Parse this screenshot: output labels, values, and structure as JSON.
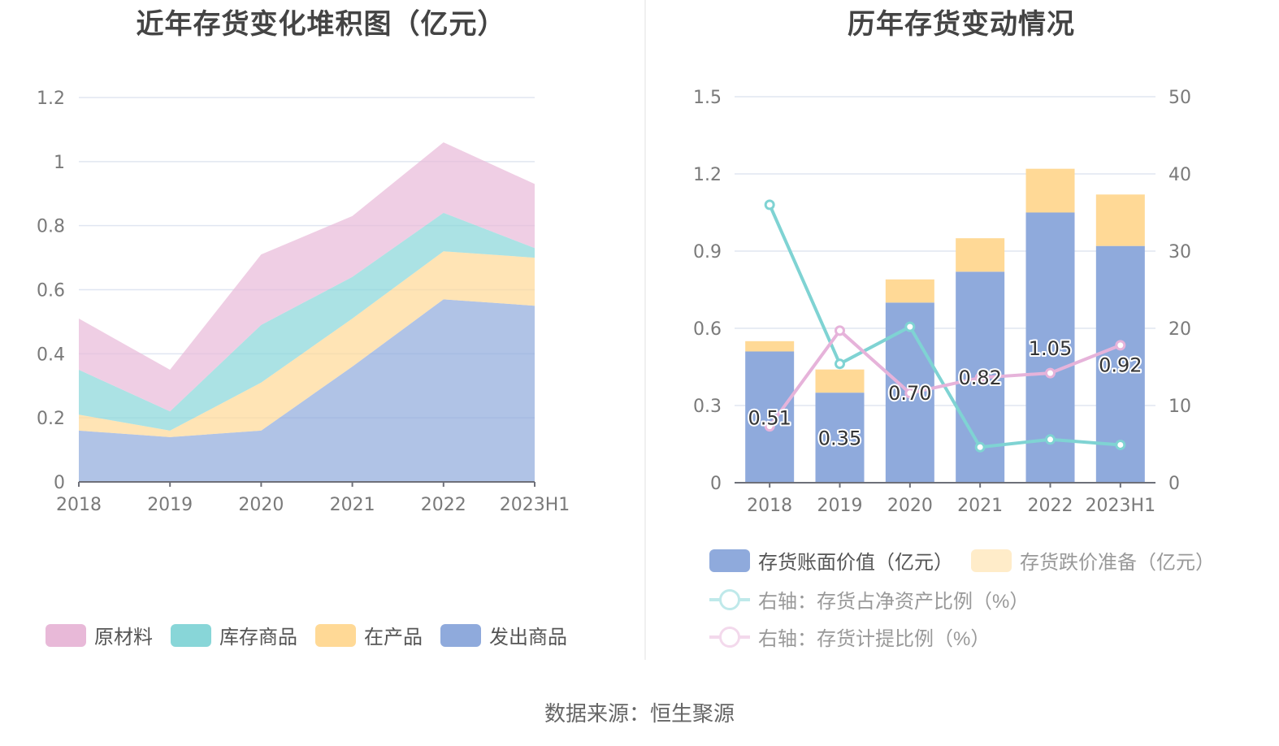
{
  "chart_data": [
    {
      "type": "area",
      "stacked": true,
      "title": "近年存货变化堆积图（亿元）",
      "xlabel": "",
      "ylabel": "",
      "categories": [
        "2018",
        "2019",
        "2020",
        "2021",
        "2022",
        "2023H1"
      ],
      "ylim": [
        0,
        1.2
      ],
      "yticks": [
        "0",
        "0.2",
        "0.4",
        "0.6",
        "0.8",
        "1",
        "1.2"
      ],
      "ytick_values": [
        0,
        0.2,
        0.4,
        0.6,
        0.8,
        1,
        1.2
      ],
      "grid": true,
      "legend_position": "bottom",
      "series": [
        {
          "name": "发出商品",
          "color": "#8faadc",
          "values": [
            0.16,
            0.14,
            0.16,
            0.36,
            0.57,
            0.55
          ]
        },
        {
          "name": "在产品",
          "color": "#ffd996",
          "values": [
            0.05,
            0.02,
            0.15,
            0.15,
            0.15,
            0.15
          ]
        },
        {
          "name": "库存商品",
          "color": "#88d6d8",
          "values": [
            0.14,
            0.06,
            0.18,
            0.13,
            0.12,
            0.03
          ]
        },
        {
          "name": "原材料",
          "color": "#e8b9d8",
          "values": [
            0.16,
            0.13,
            0.22,
            0.19,
            0.22,
            0.2
          ]
        }
      ],
      "legend": [
        "原材料",
        "库存商品",
        "在产品",
        "发出商品"
      ]
    },
    {
      "type": "bar",
      "stacked": true,
      "title": "历年存货变动情况",
      "xlabel": "",
      "ylabel": "",
      "categories": [
        "2018",
        "2019",
        "2020",
        "2021",
        "2022",
        "2023H1"
      ],
      "ylim": [
        0,
        1.5
      ],
      "yticks": [
        "0",
        "0.3",
        "0.6",
        "0.9",
        "1.2",
        "1.5"
      ],
      "ytick_values": [
        0,
        0.3,
        0.6,
        0.9,
        1.2,
        1.5
      ],
      "y2lim": [
        0,
        50
      ],
      "y2ticks": [
        "0",
        "10",
        "20",
        "30",
        "40",
        "50"
      ],
      "y2tick_values": [
        0,
        10,
        20,
        30,
        40,
        50
      ],
      "grid": true,
      "legend_position": "bottom",
      "series": [
        {
          "name": "存货账面价值（亿元）",
          "kind": "bar",
          "axis": "left",
          "color": "#8faadc",
          "values": [
            0.51,
            0.35,
            0.7,
            0.82,
            1.05,
            0.92
          ],
          "labels": [
            "0.51",
            "0.35",
            "0.70",
            "0.82",
            "1.05",
            "0.92"
          ]
        },
        {
          "name": "存货跌价准备（亿元）",
          "kind": "bar",
          "axis": "left",
          "color": "#ffd996",
          "values": [
            0.04,
            0.09,
            0.09,
            0.13,
            0.17,
            0.2
          ]
        },
        {
          "name": "右轴：存货占净资产比例（%）",
          "kind": "line",
          "axis": "right",
          "color": "#7fd3d3",
          "values": [
            36.0,
            15.4,
            20.2,
            4.6,
            5.6,
            4.9
          ]
        },
        {
          "name": "右轴：存货计提比例（%）",
          "kind": "line",
          "axis": "right",
          "color": "#e6b3da",
          "values": [
            7.3,
            19.7,
            11.6,
            13.6,
            14.2,
            17.8
          ]
        }
      ]
    }
  ],
  "footer": {
    "source": "数据来源：恒生聚源"
  }
}
